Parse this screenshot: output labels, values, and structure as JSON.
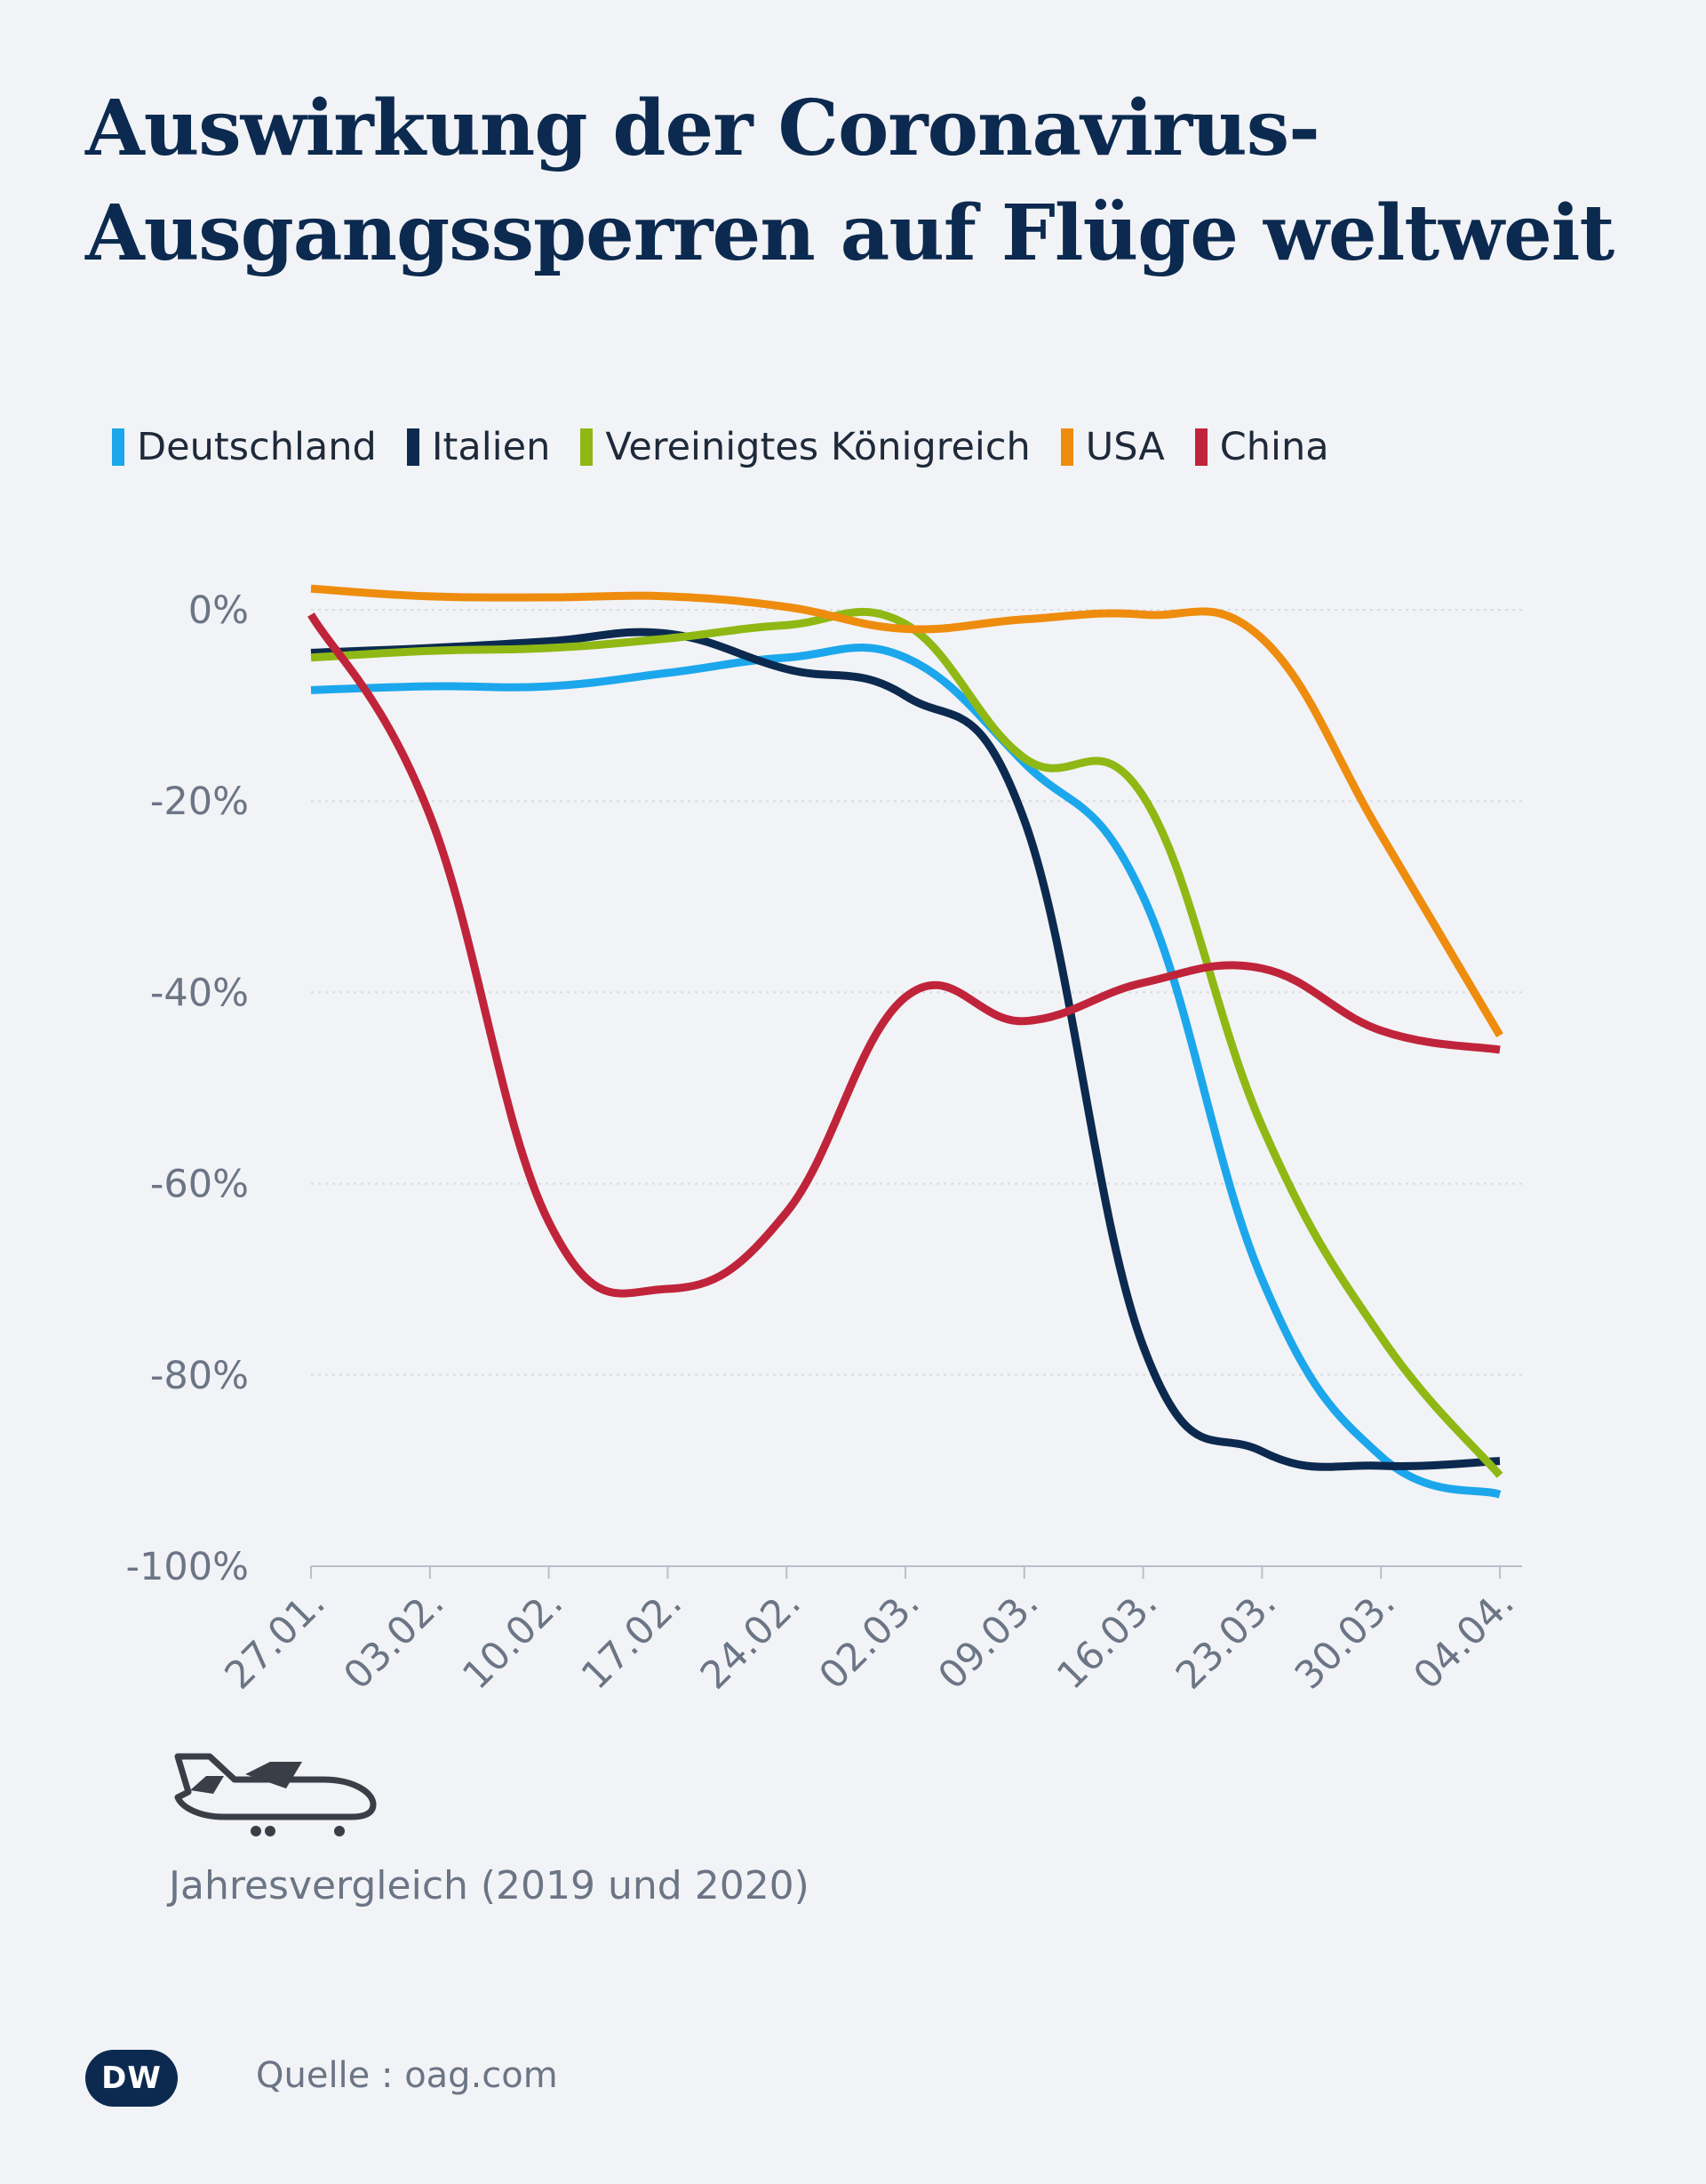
{
  "title": {
    "line1": "Auswirkung der Coronavirus-",
    "line2": "Ausgangssperren auf Flüge weltweit"
  },
  "subtitle": "Jahresvergleich (2019 und 2020)",
  "source": "Quelle : oag.com",
  "logo": "DW",
  "icon": "airplane-icon",
  "chart_data": {
    "type": "line",
    "title": "Auswirkung der Coronavirus-Ausgangssperren auf Flüge weltweit",
    "xlabel": "",
    "ylabel": "",
    "ylim": [
      -100,
      0
    ],
    "yticks": [
      0,
      -20,
      -40,
      -60,
      -80,
      -100
    ],
    "ytick_labels": [
      "0%",
      "-20%",
      "-40%",
      "-60%",
      "-80%",
      "-100%"
    ],
    "categories": [
      "27.01.",
      "03.02.",
      "10.02.",
      "17.02.",
      "24.02.",
      "02.03.",
      "09.03.",
      "16.03.",
      "23.03.",
      "30.03.",
      "04.04."
    ],
    "grid": true,
    "legend_position": "top",
    "series": [
      {
        "name": "Deutschland",
        "color": "#1ca7ec",
        "values": [
          -8.4,
          -8.0,
          -8.0,
          -6.6,
          -5.0,
          -5.0,
          -16.0,
          -30.0,
          -70.0,
          -88.5,
          -92.5
        ]
      },
      {
        "name": "Italien",
        "color": "#0c2a4f",
        "values": [
          -4.5,
          -4.0,
          -3.3,
          -2.5,
          -6.2,
          -9.0,
          -22.0,
          -77.0,
          -88.0,
          -89.5,
          -89.0
        ]
      },
      {
        "name": "Vereinigtes Königreich",
        "color": "#8fb814",
        "values": [
          -5.0,
          -4.3,
          -4.0,
          -3.0,
          -1.6,
          -1.5,
          -15.5,
          -19.5,
          -54.0,
          -76.0,
          -90.5
        ]
      },
      {
        "name": "USA",
        "color": "#ee8c0e",
        "values": [
          2.2,
          1.4,
          1.3,
          1.4,
          0.3,
          -2.0,
          -1.0,
          -0.5,
          -3.0,
          -23.5,
          -44.5
        ]
      },
      {
        "name": "China",
        "color": "#c0243a",
        "values": [
          -0.5,
          -21.5,
          -64.0,
          -71.0,
          -63.0,
          -40.5,
          -43.0,
          -39.0,
          -37.5,
          -44.0,
          -46.0
        ]
      }
    ]
  }
}
